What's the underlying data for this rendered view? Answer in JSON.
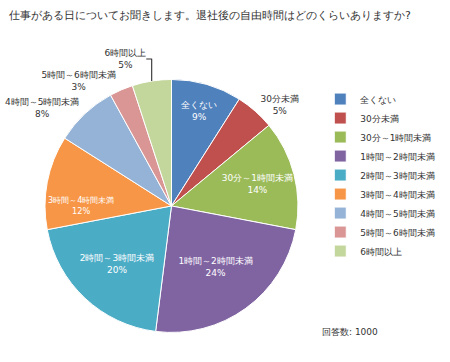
{
  "chart_data": {
    "type": "pie",
    "title": "仕事がある日についてお聞きします。退社後の自由時間はどのくらいありますか?",
    "categories": [
      "全くない",
      "30分未満",
      "30分～1時間未満",
      "1時間～2時間未満",
      "2時間～3時間未満",
      "3時間～4時間未満",
      "4時間～5時間未満",
      "5時間～6時間未満",
      "6時間以上"
    ],
    "values": [
      9,
      5,
      14,
      24,
      20,
      12,
      8,
      3,
      5
    ],
    "value_labels": [
      "9%",
      "5%",
      "14%",
      "24%",
      "20%",
      "12%",
      "8%",
      "3%",
      "5%"
    ],
    "colors": [
      "#4f81bd",
      "#c0504d",
      "#9bbb59",
      "#8064a2",
      "#4bacc6",
      "#f79646",
      "#95b3d7",
      "#d99694",
      "#c3d69b"
    ],
    "data_labels": true,
    "legend": "right",
    "annotations": [
      "回答数: 1000"
    ]
  }
}
